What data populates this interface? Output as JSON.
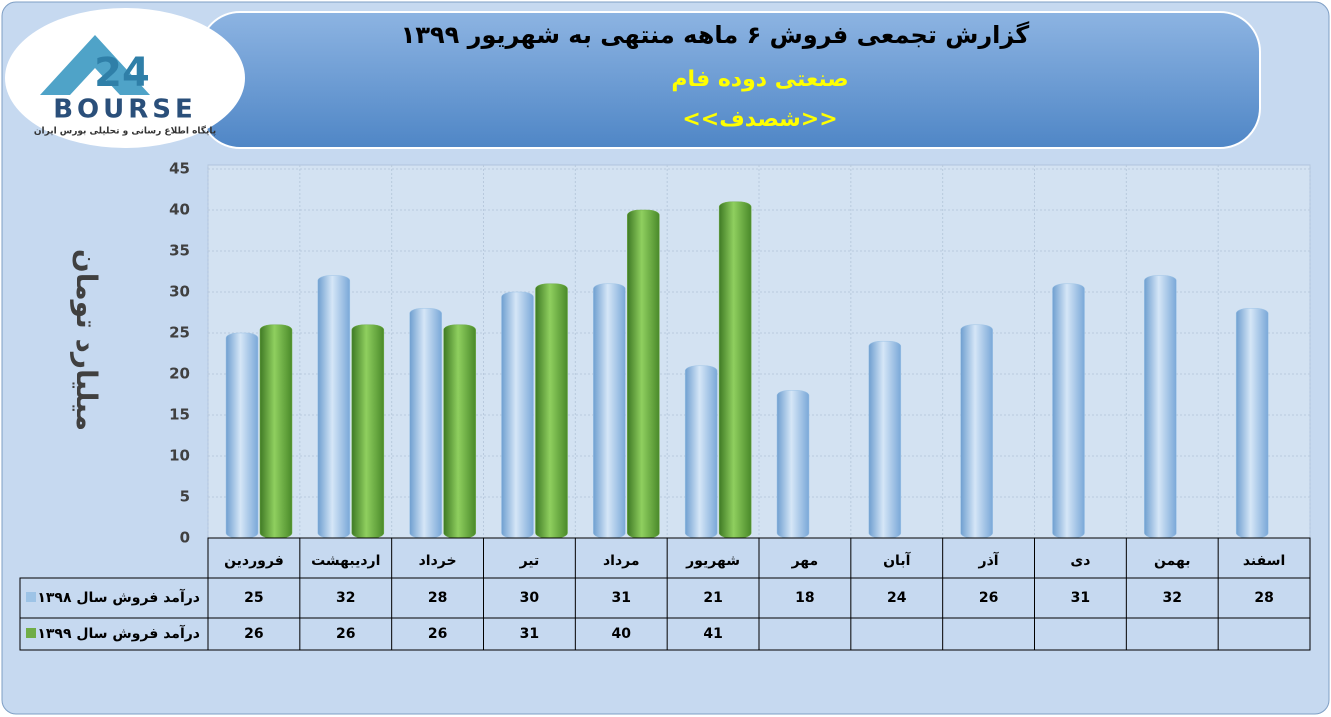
{
  "logo": {
    "text": "BOURSE",
    "subtitle": "پایگاه اطلاع رسانی و تحلیلی بورس ایران"
  },
  "chart_data": {
    "type": "bar",
    "title": "گزارش تجمعی فروش ۶ ماهه منتهی به شهریور ۱۳۹۹",
    "subtitle": "صنعتی دوده فام",
    "symbol": "<<شصدف>>",
    "y_label": "میلیارد تومان",
    "categories": [
      "فروردین",
      "اردیبهشت",
      "خرداد",
      "تیر",
      "مرداد",
      "شهریور",
      "مهر",
      "آبان",
      "آذر",
      "دی",
      "بهمن",
      "اسفند"
    ],
    "series": [
      {
        "name": "درآمد فروش سال ۱۳۹۸",
        "color": "#9dc3e6",
        "values": [
          25,
          32,
          28,
          30,
          31,
          21,
          18,
          24,
          26,
          31,
          32,
          28
        ]
      },
      {
        "name": "درآمد فروش سال ۱۳۹۹",
        "color": "#70ad47",
        "values": [
          26,
          26,
          26,
          31,
          40,
          41,
          null,
          null,
          null,
          null,
          null,
          null
        ]
      }
    ],
    "ylim": [
      0,
      45
    ],
    "yticks": [
      0,
      5,
      10,
      15,
      20,
      25,
      30,
      35,
      40,
      45
    ],
    "grid": true
  }
}
